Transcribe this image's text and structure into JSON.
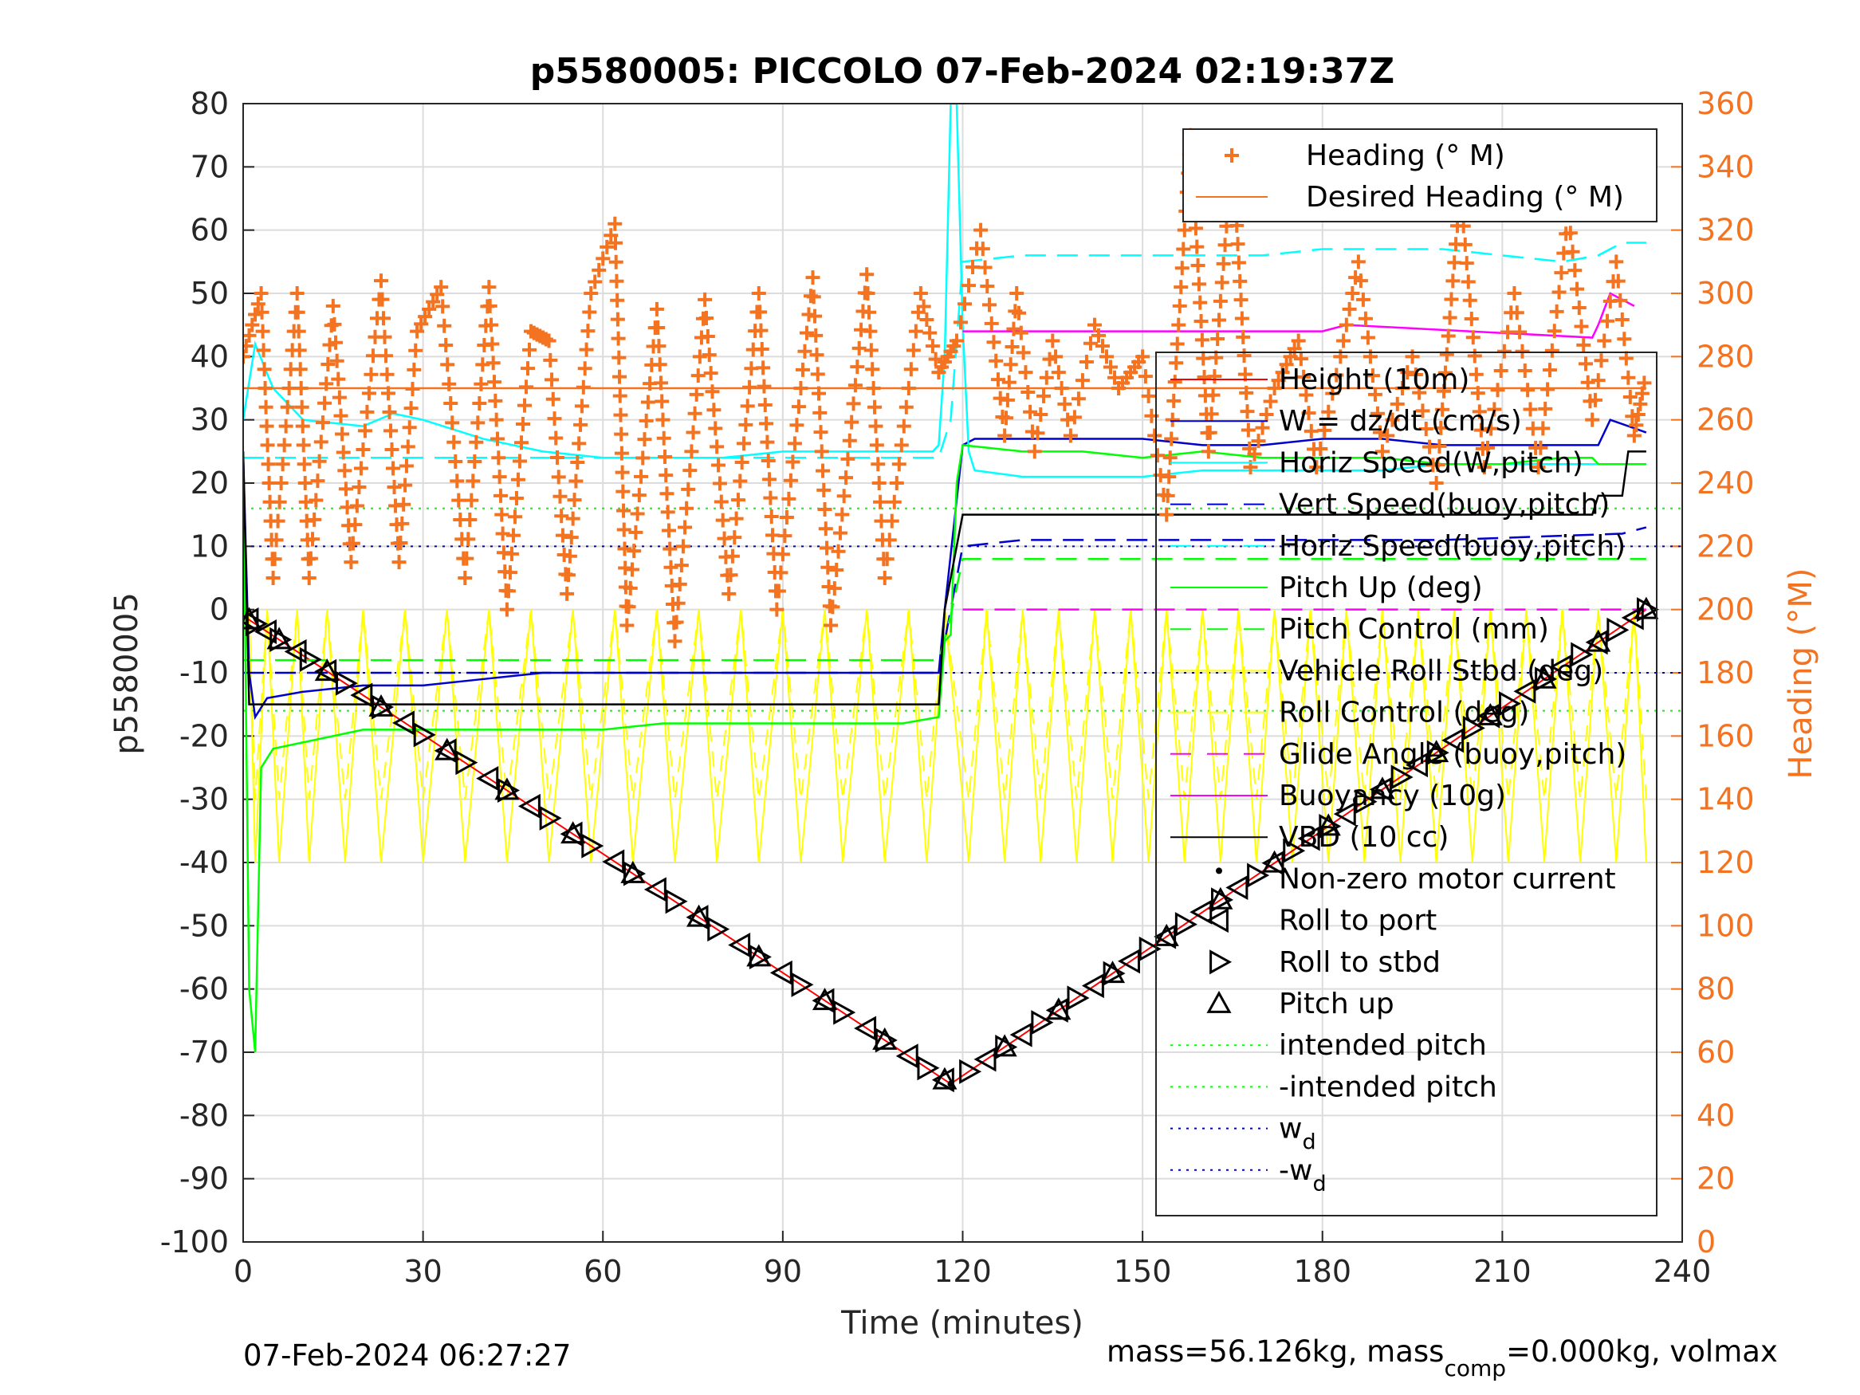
{
  "chart_data": {
    "type": "line",
    "title": "p5580005: PICCOLO 07-Feb-2024 02:19:37Z",
    "xlabel": "Time (minutes)",
    "ylabel": "p5580005",
    "y2label": "Heading (°M)",
    "xlim": [
      0,
      240
    ],
    "ylim": [
      -100,
      80
    ],
    "y2lim": [
      0,
      360
    ],
    "xticks": [
      0,
      30,
      60,
      90,
      120,
      150,
      180,
      210,
      240
    ],
    "yticks": [
      -100,
      -90,
      -80,
      -70,
      -60,
      -50,
      -40,
      -30,
      -20,
      -10,
      0,
      10,
      20,
      30,
      40,
      50,
      60,
      70,
      80
    ],
    "y2ticks": [
      0,
      20,
      40,
      60,
      80,
      100,
      120,
      140,
      160,
      180,
      200,
      220,
      240,
      260,
      280,
      300,
      320,
      340,
      360
    ],
    "grid": true,
    "legend_top": [
      {
        "label": "Heading (° M)",
        "color": "#f47320",
        "style": "plus"
      },
      {
        "label": "Desired Heading (° M)",
        "color": "#f47320",
        "style": "solid"
      }
    ],
    "legend_main": [
      {
        "label": "Height (10m)",
        "color": "#ff0000",
        "style": "solid"
      },
      {
        "label": "W = dz/dt (cm/s)",
        "color": "#0000cc",
        "style": "solid"
      },
      {
        "label": "Horiz Speed(W,pitch)",
        "color": "#00ffff",
        "style": "solid"
      },
      {
        "label": "Vert Speed(buoy,pitch)",
        "color": "#0000cc",
        "style": "dashed"
      },
      {
        "label": "Horiz Speed(buoy,pitch)",
        "color": "#00ffff",
        "style": "dashed"
      },
      {
        "label": "Pitch Up (deg)",
        "color": "#00ff00",
        "style": "solid"
      },
      {
        "label": "Pitch Control (mm)",
        "color": "#00ff00",
        "style": "dashed"
      },
      {
        "label": "Vehicle Roll Stbd (deg)",
        "color": "#ffff00",
        "style": "solid"
      },
      {
        "label": "Roll Control (deg)",
        "color": "#ffff00",
        "style": "dashed"
      },
      {
        "label": "Glide Angle (buoy,pitch)",
        "color": "#ff00ff",
        "style": "dashed"
      },
      {
        "label": "Buoyancy (10g)",
        "color": "#ff00ff",
        "style": "solid"
      },
      {
        "label": "VBD (10 cc)",
        "color": "#000000",
        "style": "solid"
      },
      {
        "label": "Non-zero motor current",
        "color": "#000000",
        "style": "dot"
      },
      {
        "label": "Roll to port",
        "color": "#000000",
        "style": "tri-left"
      },
      {
        "label": "Roll to stbd",
        "color": "#000000",
        "style": "tri-right"
      },
      {
        "label": "Pitch up",
        "color": "#000000",
        "style": "tri-up"
      },
      {
        "label": "intended pitch",
        "color": "#00ff00",
        "style": "dotted"
      },
      {
        "label": "-intended pitch",
        "color": "#00ff00",
        "style": "dotted"
      },
      {
        "label": "w",
        "sub": "d",
        "color": "#0000cc",
        "style": "dotted"
      },
      {
        "label": "-w",
        "sub": "d",
        "color": "#0000cc",
        "style": "dotted"
      }
    ],
    "reference_lines": {
      "intended_pitch": 16,
      "w_d": 10
    },
    "series": [
      {
        "name": "Height (10m)",
        "color": "#ff0000",
        "x": [
          0,
          118,
          234
        ],
        "y": [
          -1,
          -75,
          0
        ]
      },
      {
        "name": "W = dz/dt (cm/s)",
        "color": "#0000cc",
        "x": [
          0,
          1,
          2,
          4,
          10,
          20,
          30,
          40,
          50,
          60,
          70,
          80,
          90,
          100,
          110,
          116,
          117,
          120,
          122,
          130,
          140,
          150,
          160,
          170,
          180,
          190,
          200,
          210,
          220,
          226,
          228,
          234
        ],
        "y": [
          25,
          -10,
          -17,
          -14,
          -13,
          -12,
          -12,
          -11,
          -10,
          -10,
          -10,
          -10,
          -10,
          -10,
          -10,
          -10,
          0,
          26,
          27,
          27,
          27,
          27,
          26,
          26,
          27,
          27,
          26,
          26,
          26,
          26,
          30,
          28
        ]
      },
      {
        "name": "Horiz Speed(W,pitch)",
        "color": "#00ffff",
        "x": [
          0,
          2,
          5,
          10,
          20,
          25,
          30,
          40,
          50,
          60,
          70,
          80,
          90,
          100,
          110,
          115,
          116,
          117,
          118,
          119,
          120,
          121,
          122,
          130,
          140,
          150,
          160,
          170,
          180,
          190,
          200,
          210,
          220,
          230,
          234
        ],
        "y": [
          30,
          42,
          35,
          30,
          29,
          31,
          30,
          27,
          25,
          24,
          24,
          24,
          25,
          25,
          25,
          25,
          26,
          40,
          80,
          80,
          45,
          25,
          22,
          21,
          21,
          21,
          22,
          22,
          22,
          22,
          23,
          23,
          23,
          23,
          23
        ]
      },
      {
        "name": "Vert Speed(buoy,pitch)",
        "color": "#0000cc",
        "x": [
          0,
          116,
          118,
          120,
          130,
          150,
          170,
          200,
          230,
          234
        ],
        "y": [
          -10,
          -10,
          0,
          10,
          11,
          11,
          11,
          11,
          12,
          13
        ]
      },
      {
        "name": "Horiz Speed(buoy,pitch)",
        "color": "#00ffff",
        "x": [
          0,
          116,
          118,
          120,
          130,
          150,
          160,
          170,
          180,
          200,
          220,
          226,
          230,
          234
        ],
        "y": [
          24,
          24,
          30,
          55,
          56,
          56,
          56,
          56,
          57,
          57,
          55,
          56,
          58,
          58
        ]
      },
      {
        "name": "Pitch Up (deg)",
        "color": "#00ff00",
        "x": [
          0,
          1,
          2,
          3,
          5,
          10,
          20,
          30,
          40,
          50,
          60,
          70,
          80,
          90,
          100,
          110,
          116,
          117,
          118,
          119,
          120,
          130,
          140,
          150,
          160,
          170,
          180,
          190,
          200,
          210,
          220,
          225,
          226,
          234
        ],
        "y": [
          25,
          -60,
          -70,
          -25,
          -22,
          -21,
          -19,
          -19,
          -19,
          -19,
          -19,
          -18,
          -18,
          -18,
          -18,
          -18,
          -17,
          -5,
          -4,
          20,
          26,
          25,
          25,
          24,
          25,
          24,
          24,
          24,
          23,
          23,
          24,
          24,
          23,
          23
        ]
      },
      {
        "name": "Pitch Control (mm)",
        "color": "#00ff00",
        "x": [
          0,
          116,
          118,
          120,
          234
        ],
        "y": [
          -8,
          -8,
          -1,
          8,
          8
        ]
      },
      {
        "name": "Glide Angle (buoy,pitch)",
        "color": "#ff00ff",
        "x": [
          120,
          234
        ],
        "y": [
          0,
          0
        ]
      },
      {
        "name": "Buoyancy (10g)",
        "color": "#ff00ff",
        "x": [
          120,
          180,
          184,
          225,
          226,
          228,
          232
        ],
        "y": [
          44,
          44,
          45,
          43,
          45,
          50,
          48
        ]
      },
      {
        "name": "VBD (10 cc)",
        "color": "#000000",
        "x": [
          0,
          1,
          2,
          116,
          117,
          120,
          121,
          225,
          226,
          230,
          231,
          234
        ],
        "y": [
          25,
          -15,
          -15,
          -15,
          0,
          15,
          15,
          15,
          18,
          18,
          25,
          25
        ]
      },
      {
        "name": "Desired Heading (° M)",
        "color": "#f47320",
        "x": [
          0,
          234
        ],
        "y": [
          270,
          270
        ]
      }
    ],
    "heading_swings": [
      {
        "x": 0,
        "y": 280
      },
      {
        "x": 3,
        "y": 300
      },
      {
        "x": 5,
        "y": 210
      },
      {
        "x": 9,
        "y": 300
      },
      {
        "x": 11,
        "y": 210
      },
      {
        "x": 15,
        "y": 296
      },
      {
        "x": 18,
        "y": 215
      },
      {
        "x": 23,
        "y": 304
      },
      {
        "x": 26,
        "y": 215
      },
      {
        "x": 29,
        "y": 288
      },
      {
        "x": 33,
        "y": 302
      },
      {
        "x": 37,
        "y": 210
      },
      {
        "x": 41,
        "y": 302
      },
      {
        "x": 44,
        "y": 200
      },
      {
        "x": 48,
        "y": 288
      },
      {
        "x": 51,
        "y": 285
      },
      {
        "x": 54,
        "y": 205
      },
      {
        "x": 58,
        "y": 300
      },
      {
        "x": 62,
        "y": 322
      },
      {
        "x": 64,
        "y": 195
      },
      {
        "x": 69,
        "y": 295
      },
      {
        "x": 72,
        "y": 190
      },
      {
        "x": 77,
        "y": 298
      },
      {
        "x": 81,
        "y": 205
      },
      {
        "x": 86,
        "y": 300
      },
      {
        "x": 89,
        "y": 200
      },
      {
        "x": 95,
        "y": 305
      },
      {
        "x": 98,
        "y": 195
      },
      {
        "x": 104,
        "y": 306
      },
      {
        "x": 107,
        "y": 210
      },
      {
        "x": 113,
        "y": 300
      },
      {
        "x": 116,
        "y": 275
      },
      {
        "x": 119,
        "y": 285
      },
      {
        "x": 123,
        "y": 320
      },
      {
        "x": 127,
        "y": 255
      },
      {
        "x": 129,
        "y": 300
      },
      {
        "x": 132,
        "y": 250
      },
      {
        "x": 135,
        "y": 285
      },
      {
        "x": 138,
        "y": 255
      },
      {
        "x": 142,
        "y": 290
      },
      {
        "x": 146,
        "y": 270
      },
      {
        "x": 150,
        "y": 280
      },
      {
        "x": 154,
        "y": 230
      },
      {
        "x": 158,
        "y": 350
      },
      {
        "x": 161,
        "y": 250
      },
      {
        "x": 165,
        "y": 345
      },
      {
        "x": 168,
        "y": 245
      },
      {
        "x": 172,
        "y": 270
      },
      {
        "x": 176,
        "y": 285
      },
      {
        "x": 179,
        "y": 245
      },
      {
        "x": 183,
        "y": 280
      },
      {
        "x": 186,
        "y": 310
      },
      {
        "x": 190,
        "y": 250
      },
      {
        "x": 195,
        "y": 280
      },
      {
        "x": 199,
        "y": 240
      },
      {
        "x": 203,
        "y": 333
      },
      {
        "x": 207,
        "y": 245
      },
      {
        "x": 212,
        "y": 300
      },
      {
        "x": 216,
        "y": 245
      },
      {
        "x": 221,
        "y": 325
      },
      {
        "x": 225,
        "y": 260
      },
      {
        "x": 229,
        "y": 310
      },
      {
        "x": 232,
        "y": 255
      },
      {
        "x": 234,
        "y": 275
      }
    ],
    "roll_swings": [
      {
        "x": 1,
        "y": 0
      },
      {
        "x": 2,
        "y": -40
      },
      {
        "x": 4,
        "y": 0
      },
      {
        "x": 6,
        "y": -40
      },
      {
        "x": 9,
        "y": 0
      },
      {
        "x": 11,
        "y": -40
      },
      {
        "x": 14,
        "y": 0
      },
      {
        "x": 17,
        "y": -40
      },
      {
        "x": 20,
        "y": 0
      },
      {
        "x": 23,
        "y": -40
      },
      {
        "x": 27,
        "y": 0
      },
      {
        "x": 30,
        "y": -40
      },
      {
        "x": 34,
        "y": 0
      },
      {
        "x": 37,
        "y": -40
      },
      {
        "x": 41,
        "y": 0
      },
      {
        "x": 44,
        "y": -40
      },
      {
        "x": 48,
        "y": 0
      },
      {
        "x": 51,
        "y": -40
      },
      {
        "x": 55,
        "y": 0
      },
      {
        "x": 58,
        "y": -40
      },
      {
        "x": 62,
        "y": 0
      },
      {
        "x": 65,
        "y": -40
      },
      {
        "x": 69,
        "y": 0
      },
      {
        "x": 72,
        "y": -40
      },
      {
        "x": 76,
        "y": 0
      },
      {
        "x": 79,
        "y": -40
      },
      {
        "x": 83,
        "y": 0
      },
      {
        "x": 86,
        "y": -40
      },
      {
        "x": 90,
        "y": 0
      },
      {
        "x": 93,
        "y": -40
      },
      {
        "x": 97,
        "y": 0
      },
      {
        "x": 100,
        "y": -40
      },
      {
        "x": 104,
        "y": 0
      },
      {
        "x": 107,
        "y": -40
      },
      {
        "x": 111,
        "y": 0
      },
      {
        "x": 114,
        "y": -40
      },
      {
        "x": 117,
        "y": 0
      },
      {
        "x": 121,
        "y": -40
      },
      {
        "x": 124,
        "y": 0
      },
      {
        "x": 127,
        "y": -40
      },
      {
        "x": 130,
        "y": 0
      },
      {
        "x": 133,
        "y": -40
      },
      {
        "x": 136,
        "y": 0
      },
      {
        "x": 139,
        "y": -40
      },
      {
        "x": 142,
        "y": 0
      },
      {
        "x": 145,
        "y": -40
      },
      {
        "x": 148,
        "y": 0
      },
      {
        "x": 151,
        "y": -40
      },
      {
        "x": 154,
        "y": 0
      },
      {
        "x": 157,
        "y": -40
      },
      {
        "x": 160,
        "y": 0
      },
      {
        "x": 163,
        "y": -40
      },
      {
        "x": 166,
        "y": 0
      },
      {
        "x": 169,
        "y": -40
      },
      {
        "x": 172,
        "y": 0
      },
      {
        "x": 175,
        "y": -40
      },
      {
        "x": 178,
        "y": 0
      },
      {
        "x": 181,
        "y": -40
      },
      {
        "x": 184,
        "y": 0
      },
      {
        "x": 187,
        "y": -40
      },
      {
        "x": 190,
        "y": 0
      },
      {
        "x": 193,
        "y": -40
      },
      {
        "x": 196,
        "y": 0
      },
      {
        "x": 199,
        "y": -40
      },
      {
        "x": 202,
        "y": 0
      },
      {
        "x": 205,
        "y": -40
      },
      {
        "x": 208,
        "y": 0
      },
      {
        "x": 211,
        "y": -40
      },
      {
        "x": 214,
        "y": 0
      },
      {
        "x": 217,
        "y": -40
      },
      {
        "x": 220,
        "y": 0
      },
      {
        "x": 223,
        "y": -40
      },
      {
        "x": 226,
        "y": 0
      },
      {
        "x": 229,
        "y": -40
      },
      {
        "x": 232,
        "y": 0
      },
      {
        "x": 234,
        "y": -40
      }
    ],
    "footer_left": "07-Feb-2024 06:27:27",
    "footer_right": {
      "a": "mass=56.126kg, mass",
      "sub": "comp",
      "b": "=0.000kg, volmax"
    }
  }
}
